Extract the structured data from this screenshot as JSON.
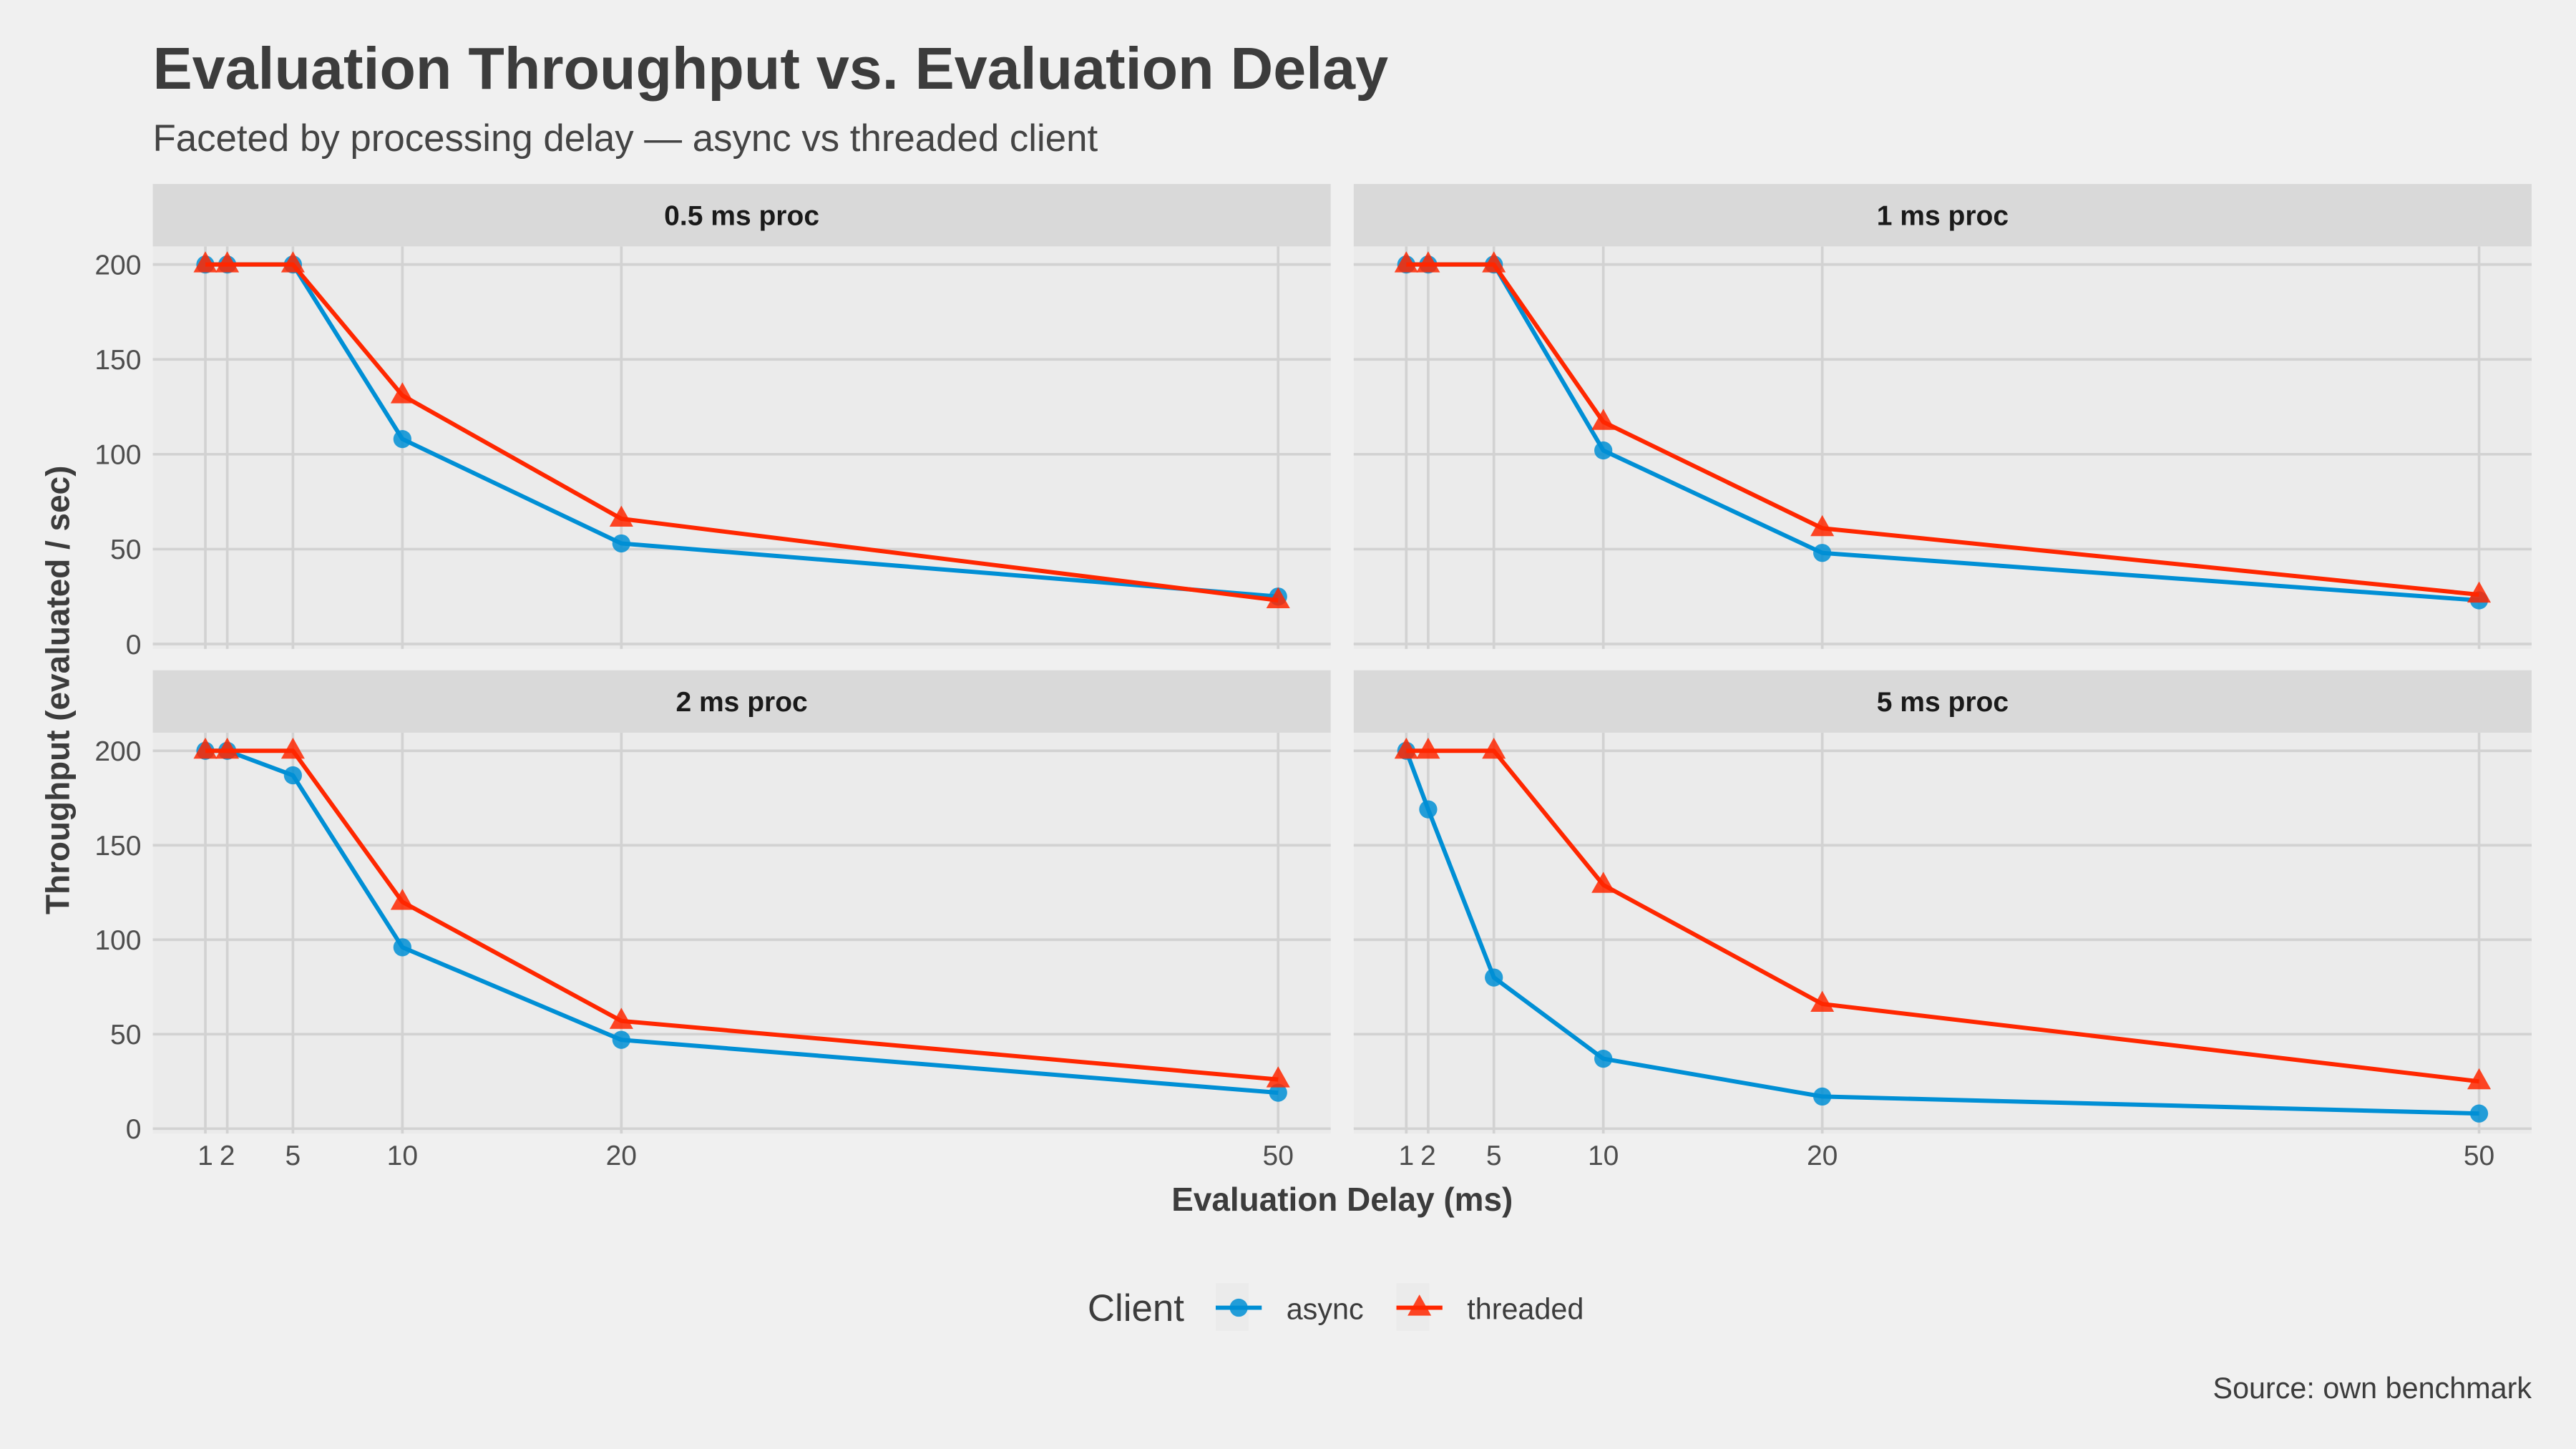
{
  "chart_data": {
    "type": "line",
    "title": "Evaluation Throughput vs. Evaluation Delay",
    "subtitle": "Faceted by processing delay — async vs threaded client",
    "xlabel": "Evaluation Delay (ms)",
    "ylabel": "Throughput (evaluated / sec)",
    "caption": "Source: own benchmark",
    "x": [
      1,
      2,
      5,
      10,
      20,
      50
    ],
    "xticks": [
      "1",
      "2",
      "5",
      "10",
      "20",
      "50"
    ],
    "yticks": [
      0,
      50,
      100,
      150,
      200
    ],
    "xlim": [
      1,
      50
    ],
    "ylim": [
      0,
      210
    ],
    "grid": true,
    "legend": {
      "title": "Client",
      "placement": "bottom",
      "entries": [
        {
          "name": "async",
          "color": "#008fd5",
          "marker": "circle"
        },
        {
          "name": "threaded",
          "color": "#ff2700",
          "marker": "triangle"
        }
      ]
    },
    "facets": [
      {
        "label": "0.5 ms proc",
        "series": [
          {
            "name": "async",
            "values": [
              200,
              200,
              200,
              108,
              53,
              25
            ]
          },
          {
            "name": "threaded",
            "values": [
              200,
              200,
              200,
              131,
              66,
              23
            ]
          }
        ]
      },
      {
        "label": "1 ms proc",
        "series": [
          {
            "name": "async",
            "values": [
              200,
              200,
              200,
              102,
              48,
              23
            ]
          },
          {
            "name": "threaded",
            "values": [
              200,
              200,
              200,
              117,
              61,
              26
            ]
          }
        ]
      },
      {
        "label": "2 ms proc",
        "series": [
          {
            "name": "async",
            "values": [
              200,
              200,
              187,
              96,
              47,
              19
            ]
          },
          {
            "name": "threaded",
            "values": [
              200,
              200,
              200,
              120,
              57,
              26
            ]
          }
        ]
      },
      {
        "label": "5 ms proc",
        "series": [
          {
            "name": "async",
            "values": [
              200,
              169,
              80,
              37,
              17,
              8
            ]
          },
          {
            "name": "threaded",
            "values": [
              200,
              200,
              200,
              129,
              66,
              25
            ]
          }
        ]
      }
    ]
  }
}
